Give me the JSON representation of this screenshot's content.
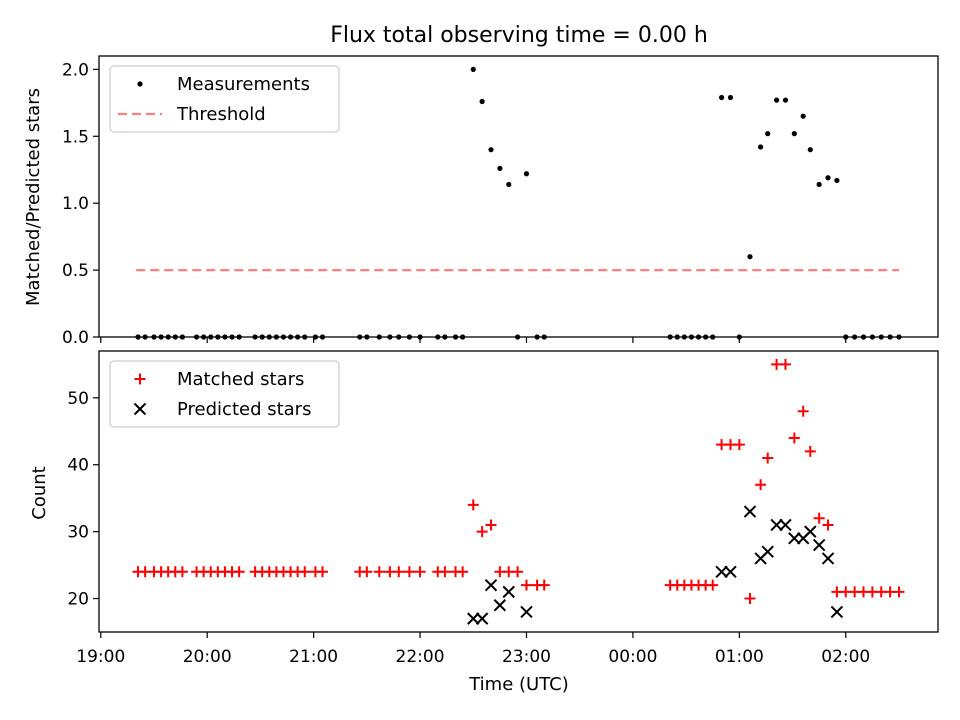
{
  "chart_data": [
    {
      "type": "scatter",
      "title": "Flux total observing time = 0.00 h",
      "ylabel": "Matched/Predicted stars",
      "xlabel": "",
      "ylim": [
        0,
        2.1
      ],
      "xlim": [
        "19:00",
        "02:52"
      ],
      "yticks": [
        "0.0",
        "0.5",
        "1.0",
        "1.5",
        "2.0"
      ],
      "grid": false,
      "legend_position": "upper-left",
      "legend": [
        "Measurements",
        "Threshold"
      ],
      "threshold": {
        "name": "Threshold",
        "y": 0.5,
        "x_start": "19:20",
        "x_end": "02:30",
        "color": "#ff7f7f",
        "style": "dashed"
      },
      "series": [
        {
          "name": "Measurements",
          "marker": "dot",
          "color": "#000000",
          "points": [
            [
              "19:21",
              0
            ],
            [
              "19:25",
              0
            ],
            [
              "19:30",
              0
            ],
            [
              "19:34",
              0
            ],
            [
              "19:38",
              0
            ],
            [
              "19:42",
              0
            ],
            [
              "19:46",
              0
            ],
            [
              "19:54",
              0
            ],
            [
              "19:58",
              0
            ],
            [
              "20:02",
              0
            ],
            [
              "20:06",
              0
            ],
            [
              "20:10",
              0
            ],
            [
              "20:14",
              0
            ],
            [
              "20:18",
              0
            ],
            [
              "20:27",
              0
            ],
            [
              "20:31",
              0
            ],
            [
              "20:35",
              0
            ],
            [
              "20:39",
              0
            ],
            [
              "20:43",
              0
            ],
            [
              "20:47",
              0
            ],
            [
              "20:51",
              0
            ],
            [
              "20:55",
              0
            ],
            [
              "21:01",
              0
            ],
            [
              "21:05",
              0
            ],
            [
              "21:26",
              0
            ],
            [
              "21:30",
              0
            ],
            [
              "21:37",
              0
            ],
            [
              "21:43",
              0
            ],
            [
              "21:48",
              0
            ],
            [
              "21:54",
              0
            ],
            [
              "22:00",
              0
            ],
            [
              "22:10",
              0
            ],
            [
              "22:14",
              0
            ],
            [
              "22:20",
              0
            ],
            [
              "22:24",
              0
            ],
            [
              "22:30",
              2.0
            ],
            [
              "22:35",
              1.76
            ],
            [
              "22:40",
              1.4
            ],
            [
              "22:45",
              1.26
            ],
            [
              "22:50",
              1.14
            ],
            [
              "22:55",
              0
            ],
            [
              "23:00",
              1.22
            ],
            [
              "23:06",
              0
            ],
            [
              "23:10",
              0
            ],
            [
              "00:21",
              0
            ],
            [
              "00:25",
              0
            ],
            [
              "00:29",
              0
            ],
            [
              "00:33",
              0
            ],
            [
              "00:37",
              0
            ],
            [
              "00:41",
              0
            ],
            [
              "00:45",
              0
            ],
            [
              "00:50",
              1.79
            ],
            [
              "00:55",
              1.79
            ],
            [
              "01:00",
              0
            ],
            [
              "01:06",
              0.6
            ],
            [
              "01:12",
              1.42
            ],
            [
              "01:16",
              1.52
            ],
            [
              "01:21",
              1.77
            ],
            [
              "01:26",
              1.77
            ],
            [
              "01:31",
              1.52
            ],
            [
              "01:36",
              1.65
            ],
            [
              "01:40",
              1.4
            ],
            [
              "01:45",
              1.14
            ],
            [
              "01:50",
              1.19
            ],
            [
              "01:55",
              1.17
            ],
            [
              "02:00",
              0
            ],
            [
              "02:05",
              0
            ],
            [
              "02:10",
              0
            ],
            [
              "02:15",
              0
            ],
            [
              "02:20",
              0
            ],
            [
              "02:25",
              0
            ],
            [
              "02:30",
              0
            ]
          ]
        }
      ]
    },
    {
      "type": "scatter",
      "title": "",
      "ylabel": "Count",
      "xlabel": "Time (UTC)",
      "ylim": [
        15,
        57
      ],
      "xlim": [
        "19:00",
        "02:52"
      ],
      "yticks": [
        "20",
        "30",
        "40",
        "50"
      ],
      "xticks": [
        "19:00",
        "20:00",
        "21:00",
        "22:00",
        "23:00",
        "00:00",
        "01:00",
        "02:00"
      ],
      "grid": false,
      "legend_position": "upper-left",
      "legend": [
        "Matched stars",
        "Predicted stars"
      ],
      "series": [
        {
          "name": "Matched stars",
          "marker": "plus",
          "color": "#ff0000",
          "points": [
            [
              "19:21",
              24
            ],
            [
              "19:25",
              24
            ],
            [
              "19:30",
              24
            ],
            [
              "19:34",
              24
            ],
            [
              "19:38",
              24
            ],
            [
              "19:42",
              24
            ],
            [
              "19:46",
              24
            ],
            [
              "19:54",
              24
            ],
            [
              "19:58",
              24
            ],
            [
              "20:02",
              24
            ],
            [
              "20:06",
              24
            ],
            [
              "20:10",
              24
            ],
            [
              "20:14",
              24
            ],
            [
              "20:18",
              24
            ],
            [
              "20:27",
              24
            ],
            [
              "20:31",
              24
            ],
            [
              "20:35",
              24
            ],
            [
              "20:39",
              24
            ],
            [
              "20:43",
              24
            ],
            [
              "20:47",
              24
            ],
            [
              "20:51",
              24
            ],
            [
              "20:55",
              24
            ],
            [
              "21:01",
              24
            ],
            [
              "21:05",
              24
            ],
            [
              "21:26",
              24
            ],
            [
              "21:30",
              24
            ],
            [
              "21:37",
              24
            ],
            [
              "21:43",
              24
            ],
            [
              "21:48",
              24
            ],
            [
              "21:54",
              24
            ],
            [
              "22:00",
              24
            ],
            [
              "22:10",
              24
            ],
            [
              "22:14",
              24
            ],
            [
              "22:20",
              24
            ],
            [
              "22:24",
              24
            ],
            [
              "22:30",
              34
            ],
            [
              "22:35",
              30
            ],
            [
              "22:40",
              31
            ],
            [
              "22:45",
              24
            ],
            [
              "22:50",
              24
            ],
            [
              "22:55",
              24
            ],
            [
              "23:00",
              22
            ],
            [
              "23:06",
              22
            ],
            [
              "23:10",
              22
            ],
            [
              "00:21",
              22
            ],
            [
              "00:25",
              22
            ],
            [
              "00:29",
              22
            ],
            [
              "00:33",
              22
            ],
            [
              "00:37",
              22
            ],
            [
              "00:41",
              22
            ],
            [
              "00:45",
              22
            ],
            [
              "00:50",
              43
            ],
            [
              "00:55",
              43
            ],
            [
              "01:00",
              43
            ],
            [
              "01:06",
              20
            ],
            [
              "01:12",
              37
            ],
            [
              "01:16",
              41
            ],
            [
              "01:21",
              55
            ],
            [
              "01:26",
              55
            ],
            [
              "01:31",
              44
            ],
            [
              "01:36",
              48
            ],
            [
              "01:40",
              42
            ],
            [
              "01:45",
              32
            ],
            [
              "01:50",
              31
            ],
            [
              "01:55",
              21
            ],
            [
              "02:00",
              21
            ],
            [
              "02:05",
              21
            ],
            [
              "02:10",
              21
            ],
            [
              "02:15",
              21
            ],
            [
              "02:20",
              21
            ],
            [
              "02:25",
              21
            ],
            [
              "02:30",
              21
            ]
          ]
        },
        {
          "name": "Predicted stars",
          "marker": "x",
          "color": "#000000",
          "points": [
            [
              "22:30",
              17
            ],
            [
              "22:35",
              17
            ],
            [
              "22:40",
              22
            ],
            [
              "22:45",
              19
            ],
            [
              "22:50",
              21
            ],
            [
              "23:00",
              18
            ],
            [
              "00:50",
              24
            ],
            [
              "00:55",
              24
            ],
            [
              "01:06",
              33
            ],
            [
              "01:12",
              26
            ],
            [
              "01:16",
              27
            ],
            [
              "01:21",
              31
            ],
            [
              "01:26",
              31
            ],
            [
              "01:31",
              29
            ],
            [
              "01:36",
              29
            ],
            [
              "01:40",
              30
            ],
            [
              "01:45",
              28
            ],
            [
              "01:50",
              26
            ],
            [
              "01:55",
              18
            ]
          ]
        }
      ]
    }
  ]
}
